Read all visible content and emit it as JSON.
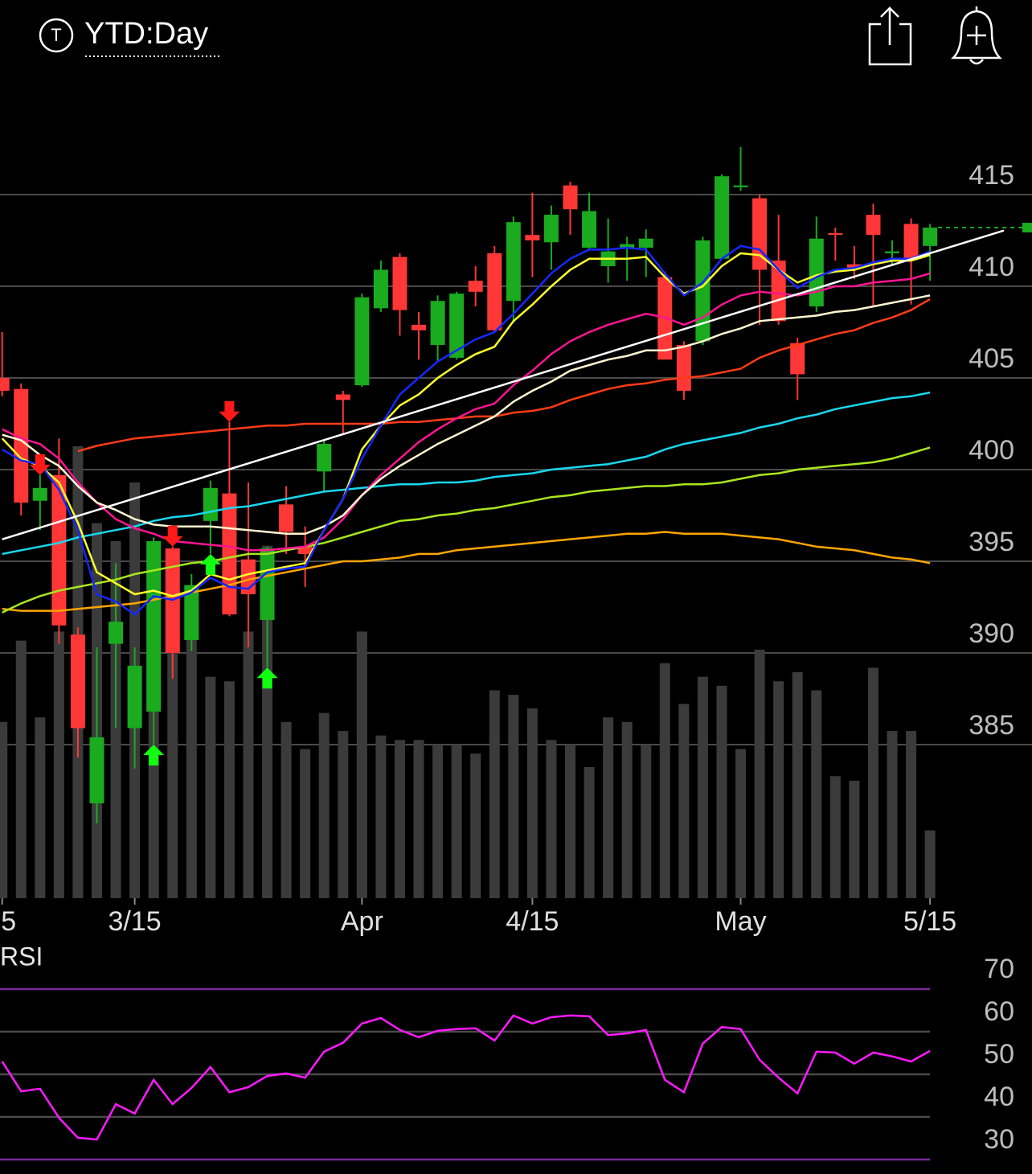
{
  "header": {
    "symbol_icon": "T",
    "timeframe": "YTD:Day"
  },
  "chart_data": [
    {
      "type": "candlestick",
      "categories": [
        "5",
        null,
        null,
        null,
        null,
        null,
        null,
        "3/15",
        null,
        null,
        null,
        null,
        null,
        null,
        null,
        null,
        null,
        null,
        null,
        "Apr",
        null,
        null,
        null,
        null,
        null,
        null,
        null,
        null,
        "4/15",
        null,
        null,
        null,
        null,
        null,
        null,
        null,
        null,
        null,
        null,
        "May",
        null,
        null,
        null,
        null,
        null,
        null,
        null,
        null,
        null,
        "5/15"
      ],
      "open": [
        405.0,
        404.4,
        398.3,
        399.7,
        391.0,
        381.8,
        390.5,
        385.9,
        386.8,
        395.7,
        390.7,
        397.2,
        398.7,
        395.1,
        391.8,
        398.1,
        395.8,
        399.9,
        404.1,
        404.6,
        408.8,
        411.6,
        407.9,
        406.8,
        406.1,
        410.3,
        411.8,
        409.2,
        412.8,
        412.4,
        415.5,
        412.1,
        411.1,
        412.1,
        412.1,
        410.5,
        406.8,
        407.0,
        411.5,
        415.4,
        414.8,
        411.4,
        406.9,
        408.9,
        412.9,
        411.2,
        413.9,
        411.8,
        413.4,
        412.2
      ],
      "high": [
        407.5,
        404.7,
        399.7,
        401.7,
        391.4,
        390.3,
        394.9,
        390.3,
        396.3,
        395.8,
        394.3,
        399.4,
        402.6,
        399.3,
        395.8,
        399.1,
        396.9,
        401.6,
        404.3,
        409.6,
        411.4,
        411.8,
        408.6,
        409.5,
        409.7,
        411.1,
        412.2,
        413.8,
        415.1,
        414.4,
        415.7,
        415.1,
        413.7,
        412.7,
        413.1,
        410.8,
        407.0,
        412.7,
        416.1,
        417.6,
        415.0,
        413.9,
        407.2,
        413.8,
        413.2,
        412.2,
        414.5,
        412.5,
        413.7,
        413.4
      ],
      "low": [
        404.0,
        397.5,
        396.7,
        390.5,
        384.3,
        380.7,
        385.9,
        383.7,
        385.0,
        388.6,
        390.1,
        395.4,
        392.0,
        390.3,
        389.2,
        395.4,
        393.6,
        398.8,
        401.9,
        404.5,
        408.6,
        407.3,
        406.0,
        405.9,
        406.0,
        408.9,
        407.5,
        408.0,
        410.5,
        410.9,
        412.8,
        412.0,
        410.2,
        410.3,
        410.5,
        406.0,
        403.8,
        406.8,
        411.5,
        415.2,
        407.9,
        407.9,
        403.8,
        408.6,
        411.4,
        410.4,
        408.9,
        411.1,
        409.0,
        410.3
      ],
      "close": [
        404.3,
        398.2,
        399.0,
        391.5,
        385.9,
        385.4,
        391.7,
        389.3,
        396.1,
        390.0,
        393.7,
        399.0,
        392.1,
        393.2,
        395.7,
        396.6,
        395.4,
        401.4,
        403.8,
        409.4,
        410.9,
        408.7,
        407.6,
        409.2,
        409.6,
        409.7,
        407.6,
        413.5,
        412.5,
        413.9,
        414.2,
        414.1,
        411.9,
        412.3,
        412.6,
        406.0,
        404.3,
        412.5,
        416.0,
        415.5,
        410.9,
        408.1,
        405.2,
        412.6,
        412.8,
        411.0,
        412.8,
        411.9,
        411.5,
        413.2
      ],
      "up_color": "#1aab1f",
      "down_color": "#ff3737",
      "ylim": [
        377,
        420
      ],
      "yticks": [
        415,
        410,
        405,
        400,
        395,
        390,
        385
      ],
      "grid": true,
      "volume": [
        39,
        57,
        40,
        59,
        100,
        83,
        79,
        92,
        74,
        73,
        69,
        49,
        48,
        59,
        78,
        39,
        33,
        41,
        37,
        59,
        36,
        35,
        35,
        34,
        34,
        32,
        46,
        45,
        42,
        35,
        34,
        29,
        40,
        39,
        34,
        52,
        43,
        49,
        47,
        33,
        55,
        48,
        50,
        46,
        27,
        26,
        51,
        37,
        37,
        15
      ],
      "vlim": [
        0,
        100
      ],
      "volume_color": "#3b3b3b",
      "series": [
        {
          "color": "#ffa500",
          "values": [
            392.4,
            392.3,
            392.3,
            392.3,
            392.4,
            392.5,
            392.6,
            392.7,
            392.9,
            393.1,
            393.3,
            393.5,
            393.7,
            394.0,
            394.2,
            394.4,
            394.6,
            394.8,
            395.0,
            395.0,
            395.1,
            395.2,
            395.4,
            395.4,
            395.6,
            395.7,
            395.8,
            395.9,
            396.0,
            396.1,
            396.2,
            396.3,
            396.4,
            396.5,
            396.5,
            396.6,
            396.5,
            396.5,
            396.5,
            396.4,
            396.3,
            396.2,
            396.0,
            395.8,
            395.7,
            395.6,
            395.4,
            395.2,
            395.1,
            394.9
          ]
        },
        {
          "color": "#a8e61e",
          "values": [
            392.2,
            392.7,
            393.1,
            393.4,
            393.6,
            393.8,
            394.0,
            394.3,
            394.5,
            394.7,
            394.9,
            395.0,
            395.2,
            395.4,
            395.4,
            395.6,
            395.8,
            396.0,
            396.3,
            396.6,
            396.9,
            397.2,
            397.3,
            397.5,
            397.6,
            397.8,
            397.9,
            398.1,
            398.3,
            398.5,
            398.6,
            398.8,
            398.9,
            399.0,
            399.1,
            399.1,
            399.2,
            399.2,
            399.3,
            399.5,
            399.7,
            399.8,
            400.0,
            400.1,
            400.2,
            400.3,
            400.4,
            400.6,
            400.9,
            401.2
          ]
        },
        {
          "color": "#19d7f0",
          "values": [
            395.4,
            395.6,
            395.8,
            396.0,
            396.3,
            396.5,
            396.7,
            396.9,
            397.2,
            397.4,
            397.5,
            397.7,
            397.9,
            398.0,
            398.2,
            398.4,
            398.6,
            398.8,
            398.9,
            399.0,
            399.1,
            399.2,
            399.2,
            399.3,
            399.3,
            399.4,
            399.6,
            399.7,
            399.8,
            400.0,
            400.1,
            400.2,
            400.3,
            400.5,
            400.7,
            401.1,
            401.4,
            401.6,
            401.8,
            402.0,
            402.3,
            402.5,
            402.8,
            403.0,
            403.3,
            403.5,
            403.7,
            403.9,
            404.0,
            404.2
          ]
        },
        {
          "color": "#ff3c14",
          "values": [
            null,
            null,
            null,
            null,
            401.0,
            401.3,
            401.5,
            401.7,
            401.8,
            401.9,
            402.0,
            402.1,
            402.2,
            402.3,
            402.4,
            402.4,
            402.5,
            402.5,
            402.5,
            402.5,
            402.5,
            402.6,
            402.6,
            402.7,
            402.8,
            402.9,
            402.9,
            403.1,
            403.2,
            403.4,
            403.8,
            404.1,
            404.4,
            404.6,
            404.7,
            404.9,
            405.0,
            405.1,
            405.3,
            405.5,
            406.1,
            406.5,
            406.8,
            407.1,
            407.4,
            407.6,
            408.0,
            408.3,
            408.7,
            409.3
          ]
        },
        {
          "color": "#ff1493",
          "values": [
            402.2,
            401.7,
            401.4,
            400.6,
            399.3,
            398.2,
            397.3,
            396.8,
            396.5,
            396.1,
            396.0,
            395.9,
            395.8,
            395.6,
            395.6,
            395.7,
            395.8,
            396.3,
            397.3,
            398.6,
            399.7,
            400.6,
            401.5,
            402.2,
            402.8,
            403.3,
            403.6,
            404.6,
            405.4,
            406.3,
            407.0,
            407.5,
            407.9,
            408.2,
            408.5,
            408.3,
            407.9,
            408.3,
            409.0,
            409.5,
            409.7,
            409.6,
            409.5,
            409.7,
            410.0,
            410.0,
            410.2,
            410.3,
            410.4,
            410.7
          ]
        },
        {
          "color": "#fff6d0",
          "values": [
            401.9,
            401.6,
            400.8,
            400.2,
            399.1,
            398.2,
            397.8,
            397.3,
            397.0,
            396.9,
            396.9,
            396.9,
            396.8,
            396.7,
            396.6,
            396.5,
            396.5,
            396.9,
            397.5,
            398.6,
            399.5,
            400.2,
            400.8,
            401.4,
            401.9,
            402.4,
            402.9,
            403.7,
            404.3,
            404.8,
            405.4,
            405.7,
            406.0,
            406.2,
            406.5,
            406.5,
            406.7,
            407.0,
            407.4,
            407.7,
            408.1,
            408.2,
            408.3,
            408.4,
            408.6,
            408.7,
            408.9,
            409.1,
            409.3,
            409.5
          ]
        },
        {
          "color": "#ffff2a",
          "values": [
            401.7,
            400.6,
            400.2,
            399.3,
            397.1,
            394.4,
            393.8,
            393.2,
            393.4,
            393.1,
            393.4,
            394.3,
            394.0,
            394.3,
            394.5,
            394.7,
            394.9,
            396.7,
            398.4,
            401.1,
            402.4,
            403.5,
            404.1,
            405.0,
            405.7,
            406.3,
            406.7,
            408.1,
            409.0,
            410.0,
            410.9,
            411.5,
            411.5,
            411.5,
            411.6,
            410.5,
            409.6,
            410.0,
            411.1,
            411.8,
            411.7,
            410.9,
            410.2,
            410.6,
            410.8,
            410.9,
            411.2,
            411.4,
            411.4,
            411.7
          ]
        },
        {
          "color": "#1428ff",
          "values": [
            401.1,
            400.5,
            400.3,
            398.9,
            396.7,
            393.2,
            392.8,
            392.1,
            393.1,
            392.9,
            393.3,
            394.1,
            393.6,
            393.5,
            394.4,
            394.6,
            394.7,
            396.7,
            398.4,
            400.6,
            402.4,
            404.1,
            405.0,
            405.9,
            406.5,
            407.1,
            407.5,
            408.5,
            409.6,
            410.7,
            411.5,
            412.0,
            412.0,
            412.1,
            412.0,
            410.7,
            409.5,
            410.2,
            411.5,
            412.2,
            412.0,
            410.9,
            409.9,
            410.5,
            410.9,
            411.0,
            411.3,
            411.5,
            411.5,
            411.9
          ]
        }
      ],
      "trendline": {
        "color": "#ffffff",
        "values": [
          396.2,
          411.8
        ]
      },
      "signals": [
        null,
        null,
        "sell",
        null,
        null,
        null,
        null,
        null,
        "buy",
        "sell",
        null,
        "buy",
        "sell",
        null,
        "buy",
        null,
        null,
        null,
        null,
        null,
        null,
        null,
        null,
        null,
        null,
        null,
        null,
        null,
        null,
        null,
        null,
        null,
        null,
        null,
        null,
        null,
        null,
        null,
        null,
        null,
        null,
        null,
        null,
        null,
        null,
        null,
        null,
        null,
        null,
        null
      ],
      "buy_color": "#11ff11",
      "sell_color": "#ff1a1a"
    },
    {
      "type": "line",
      "title": "RSI",
      "values": [
        53.0,
        46.0,
        46.6,
        39.8,
        35.1,
        34.7,
        43.0,
        40.8,
        48.7,
        43.0,
        46.8,
        51.7,
        45.8,
        47.0,
        49.6,
        50.2,
        49.2,
        55.3,
        57.4,
        61.9,
        63.2,
        60.4,
        58.7,
        60.2,
        60.6,
        60.8,
        57.9,
        63.8,
        61.9,
        63.4,
        63.8,
        63.6,
        59.2,
        59.6,
        60.4,
        48.7,
        45.8,
        57.2,
        61.1,
        60.6,
        53.4,
        49.2,
        45.5,
        55.3,
        55.1,
        52.5,
        55.1,
        54.2,
        53.0,
        55.5
      ],
      "color": "#ff1aff",
      "ylim": [
        28,
        72
      ],
      "yticks": [
        70,
        60,
        50,
        40,
        30
      ],
      "grid_colors": [
        "#7b2a9e",
        "#4a4a4a",
        "#4a4a4a",
        "#4a4a4a",
        "#7b2a9e"
      ]
    }
  ]
}
